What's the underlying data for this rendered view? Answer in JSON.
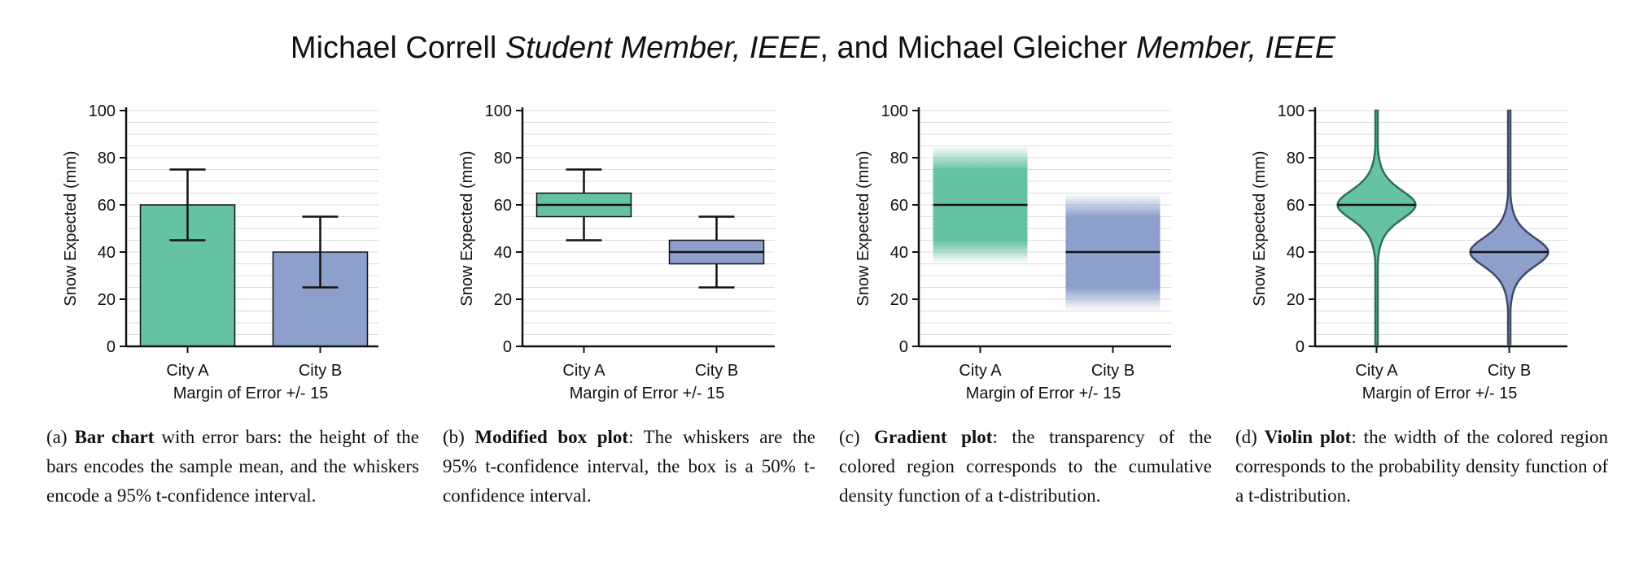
{
  "header": {
    "author1": "Michael Correll",
    "role1": "Student Member, IEEE",
    "sep": ", and",
    "author2": "Michael Gleicher",
    "role2": "Member, IEEE"
  },
  "colors": {
    "green": "#66c2a5",
    "blue": "#8da0cb",
    "greenEdge": "#2f6f5c",
    "blueEdge": "#3d4a6b"
  },
  "chart_data": [
    {
      "type": "bar",
      "categories": [
        "City A",
        "City B"
      ],
      "values": [
        60,
        40
      ],
      "error_low": [
        45,
        25
      ],
      "error_high": [
        75,
        55
      ],
      "ylabel": "Snow Expected (mm)",
      "xlabel": "Margin of Error +/- 15",
      "ylim": [
        0,
        100
      ],
      "yticks": [
        0,
        20,
        40,
        60,
        80,
        100
      ],
      "grid": true
    },
    {
      "type": "box",
      "categories": [
        "City A",
        "City B"
      ],
      "median": [
        60,
        40
      ],
      "box_low": [
        55,
        35
      ],
      "box_high": [
        65,
        45
      ],
      "whisker_low": [
        45,
        25
      ],
      "whisker_high": [
        75,
        55
      ],
      "ylabel": "Snow Expected (mm)",
      "xlabel": "Margin of Error +/- 15",
      "ylim": [
        0,
        100
      ],
      "yticks": [
        0,
        20,
        40,
        60,
        80,
        100
      ],
      "grid": true
    },
    {
      "type": "gradient",
      "categories": [
        "City A",
        "City B"
      ],
      "mean": [
        60,
        40
      ],
      "range_low": [
        35,
        15
      ],
      "range_high": [
        85,
        65
      ],
      "ylabel": "Snow Expected (mm)",
      "xlabel": "Margin of Error +/- 15",
      "ylim": [
        0,
        100
      ],
      "yticks": [
        0,
        20,
        40,
        60,
        80,
        100
      ],
      "grid": true
    },
    {
      "type": "violin",
      "categories": [
        "City A",
        "City B"
      ],
      "mean": [
        60,
        40
      ],
      "range_low": [
        1,
        1
      ],
      "range_high": [
        100,
        100
      ],
      "ylabel": "Snow Expected (mm)",
      "xlabel": "Margin of Error +/- 15",
      "ylim": [
        0,
        100
      ],
      "yticks": [
        0,
        20,
        40,
        60,
        80,
        100
      ],
      "grid": true
    }
  ],
  "captions": [
    {
      "tag": "(a)",
      "bold": "Bar chart",
      "rest": " with error bars: the height of the bars encodes the sample mean, and the whiskers encode a 95% t-confidence interval."
    },
    {
      "tag": "(b)",
      "bold": "Modified box plot",
      "rest": ": The whiskers are the 95% t-confidence interval, the box is a 50% t-confidence interval."
    },
    {
      "tag": "(c)",
      "bold": "Gradient plot",
      "rest": ": the transparency of the colored region corresponds to the cumulative density function of a t-distribution."
    },
    {
      "tag": "(d)",
      "bold": "Violin plot",
      "rest": ": the width of the colored region corresponds to the probability density function of a t-distribution."
    }
  ]
}
